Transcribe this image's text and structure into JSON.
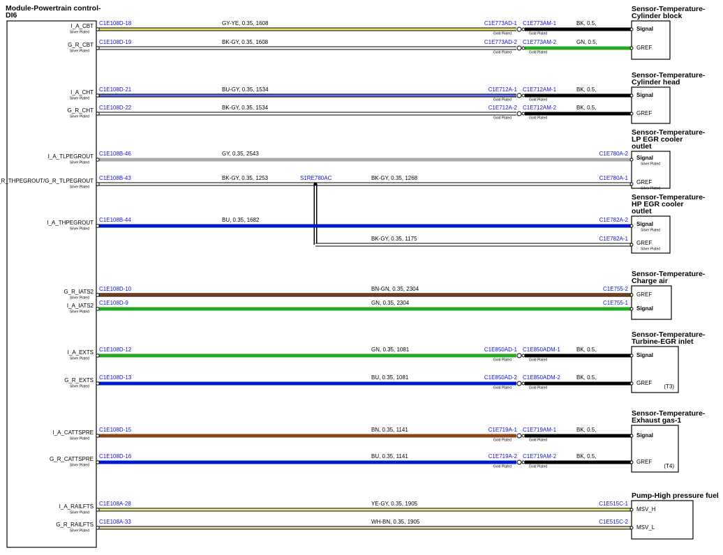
{
  "module": {
    "title": [
      "Module-Powertrain control-",
      "DI6"
    ]
  },
  "components": [
    {
      "title": [
        "Sensor-Temperature-",
        "Cylinder block"
      ],
      "wires": [
        {
          "pin": "I_A_CBT",
          "pin_plating": "Silver Plated",
          "from": "C1E108D-18",
          "spec": "GY-YE, 0.35, 1608",
          "to": "C1E773AD-1",
          "to_plating": "Gold Plated",
          "mate": "C1E773AM-1",
          "mate_plating": "Gold Plated",
          "spec2": "BK, 0.5,",
          "sensor_pin": "Signal"
        },
        {
          "pin": "G_R_CBT",
          "pin_plating": "Silver Plated",
          "from": "C1E108D-19",
          "spec": "BK-GY, 0.35, 1608",
          "to": "C1E773AD-2",
          "to_plating": "Gold Plated",
          "mate": "C1E773AM-2",
          "mate_plating": "Gold Plated",
          "spec2": "GN, 0.5,",
          "sensor_pin": "GREF"
        }
      ]
    },
    {
      "title": [
        "Sensor-Temperature-",
        "Cylinder head"
      ],
      "wires": [
        {
          "pin": "I_A_CHT",
          "pin_plating": "Silver Plated",
          "from": "C1E108D-21",
          "spec": "BU-GY, 0.35, 1534",
          "to": "C1E712A-1",
          "to_plating": "Gold Plated",
          "mate": "C1E712AM-1",
          "mate_plating": "Gold Plated",
          "spec2": "BK, 0.5,",
          "sensor_pin": "Signal"
        },
        {
          "pin": "G_R_CHT",
          "pin_plating": "Silver Plated",
          "from": "C1E108D-22",
          "spec": "BK-GY, 0.35, 1534",
          "to": "C1E712A-2",
          "to_plating": "Gold Plated",
          "mate": "C1E712AM-2",
          "mate_plating": "Gold Plated",
          "spec2": "BK, 0.5,",
          "sensor_pin": "GREF"
        }
      ]
    },
    {
      "title": [
        "Sensor-Temperature-",
        "LP EGR cooler",
        "outlet"
      ],
      "wires": [
        {
          "pin": "I_A_TLPEGROUT",
          "pin_plating": "Silver Plated",
          "from": "C1E108B-46",
          "spec": "GY, 0.35, 2543",
          "to": "C1E780A-2",
          "sensor_pin": "Signal",
          "sensor_pin_plating": "Silver Plated"
        },
        {
          "pin": "G_R_THPEGROUT/G_R_TLPEGROUT",
          "pin_plating": "Silver Plated",
          "from": "C1E108B-43",
          "spec": "BK-GY, 0.35, 1253",
          "splice": "S1RE780AC",
          "spec_b": "BK-GY, 0.35, 1268",
          "to": "C1E780A-1",
          "sensor_pin": "GREF",
          "sensor_pin_plating": "Silver Plated"
        }
      ]
    },
    {
      "title": [
        "Sensor-Temperature-",
        "HP EGR cooler",
        "outlet"
      ],
      "wires": [
        {
          "pin": "I_A_THPEGROUT",
          "pin_plating": "Silver Plated",
          "from": "C1E108B-44",
          "spec": "BU, 0.35, 1682",
          "to": "C1E782A-2",
          "sensor_pin": "Signal",
          "sensor_pin_plating": "Silver Plated"
        },
        {
          "spec": "BK-GY, 0.35, 1175",
          "to": "C1E782A-1",
          "sensor_pin": "GREF",
          "sensor_pin_plating": "Silver Plated"
        }
      ]
    },
    {
      "title": [
        "Sensor-Temperature-",
        "Charge air"
      ],
      "wires": [
        {
          "pin": "G_R_IATS2",
          "pin_plating": "Silver Plated",
          "from": "C1E108D-10",
          "spec": "BN-GN, 0.35, 2304",
          "to": "C1E755-2",
          "sensor_pin": "GREF"
        },
        {
          "pin": "I_A_IATS2",
          "pin_plating": "Silver Plated",
          "from": "C1E108D-9",
          "spec": "GN, 0.35, 2304",
          "to": "C1E755-1",
          "sensor_pin": "Signal"
        }
      ]
    },
    {
      "title": [
        "Sensor-Temperature-",
        "Turbine-EGR inlet"
      ],
      "note": "(T3)",
      "wires": [
        {
          "pin": "I_A_EXTS",
          "pin_plating": "Silver Plated",
          "from": "C1E108D-12",
          "spec": "GN, 0.35, 1081",
          "to": "C1E850AD-1",
          "to_plating": "Gold Plated",
          "mate": "C1E850ADM-1",
          "mate_plating": "Gold Plated",
          "spec2": "BK, 0.5,",
          "sensor_pin": "Signal"
        },
        {
          "pin": "G_R_EXTS",
          "pin_plating": "Silver Plated",
          "from": "C1E108D-13",
          "spec": "BU, 0.35, 1081",
          "to": "C1E850AD-2",
          "to_plating": "Gold Plated",
          "mate": "C1E850ADM-2",
          "mate_plating": "Gold Plated",
          "spec2": "BK, 0.5,",
          "sensor_pin": "GREF"
        }
      ]
    },
    {
      "title": [
        "Sensor-Temperature-",
        "Exhaust gas-1"
      ],
      "note": "(T4)",
      "wires": [
        {
          "pin": "I_A_CATTSPRE",
          "pin_plating": "Silver Plated",
          "from": "C1E108D-15",
          "spec": "BN, 0.35, 1141",
          "to": "C1E719A-1",
          "to_plating": "Gold Plated",
          "mate": "C1E719AM-1",
          "mate_plating": "Gold Plated",
          "spec2": "BK, 0.5,",
          "sensor_pin": "Signal"
        },
        {
          "pin": "G_R_CATTSPRE",
          "pin_plating": "Silver Plated",
          "from": "C1E108D-16",
          "spec": "BU, 0.35, 1141",
          "to": "C1E719A-2",
          "to_plating": "Gold Plated",
          "mate": "C1E719AM-2",
          "mate_plating": "Gold Plated",
          "spec2": "BK, 0.5,",
          "sensor_pin": "GREF"
        }
      ]
    },
    {
      "title": [
        "Pump-High pressure fuel"
      ],
      "wires": [
        {
          "pin": "I_A_RAILFTS",
          "pin_plating": "Silver Plated",
          "from": "C1E108A-28",
          "spec": "YE-GY, 0.35, 1905",
          "to": "C1E515C-1",
          "sensor_pin": "MSV_H"
        },
        {
          "pin": "G_R_RAILFTS",
          "pin_plating": "Silver Plated",
          "from": "C1E108A-33",
          "spec": "WH-BN, 0.35, 1905",
          "to": "C1E515C-2",
          "sensor_pin": "MSV_L"
        }
      ]
    }
  ]
}
